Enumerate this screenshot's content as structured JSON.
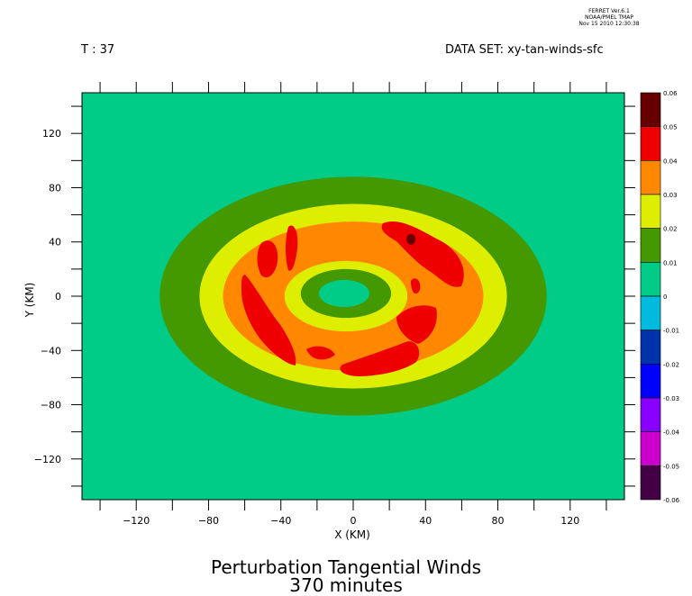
{
  "stamp": {
    "line1": "FERRET Ver.6.1",
    "line2": "NOAA/PMEL TMAP",
    "line3": "Nov 15 2010 12:30:38"
  },
  "header": {
    "time_label": "T : 37",
    "dataset_label": "DATA SET: xy-tan-winds-sfc"
  },
  "title": {
    "line1": "Perturbation Tangential Winds",
    "line2": "370 minutes"
  },
  "chart_data": {
    "type": "heatmap",
    "xlabel": "X (KM)",
    "ylabel": "Y (KM)",
    "xlim": [
      -150,
      150
    ],
    "ylim": [
      -150,
      150
    ],
    "xticks": [
      -120,
      -80,
      -40,
      0,
      40,
      80,
      120
    ],
    "yticks": [
      120,
      80,
      40,
      0,
      -40,
      -80,
      -120
    ],
    "grid": false,
    "colorbar": {
      "placement": "right",
      "levels": [
        "0.06",
        "0.05",
        "0.04",
        "0.03",
        "0.02",
        "0.01",
        "0",
        "-0.01",
        "-0.02",
        "-0.03",
        "-0.04",
        "-0.05",
        "-0.06"
      ],
      "colors": [
        "#660000",
        "#ee0000",
        "#ff8800",
        "#ddee00",
        "#449900",
        "#00cc88",
        "#00bbdd",
        "#0033aa",
        "#0000ff",
        "#8800ff",
        "#cc00cc",
        "#440044"
      ]
    },
    "regions": [
      {
        "level": "0.01 to 0.02",
        "color": "#449900",
        "shape": "outer ring",
        "center": [
          0,
          0
        ],
        "radii": [
          107,
          88
        ]
      },
      {
        "level": "0.02 to 0.03",
        "color": "#ddee00",
        "shape": "ring",
        "center": [
          0,
          0
        ],
        "radii": [
          85,
          68
        ]
      },
      {
        "level": "0.03 to 0.04",
        "color": "#ff8800",
        "shape": "ring",
        "center": [
          0,
          0
        ],
        "radii": [
          72,
          55
        ]
      },
      {
        "level": "0.02 to 0.03",
        "color": "#ddee00",
        "shape": "inner ring",
        "center": [
          -4,
          0
        ],
        "radii": [
          34,
          26
        ]
      },
      {
        "level": "0.01 to 0.02",
        "color": "#449900",
        "shape": "inner ring",
        "center": [
          -4,
          2
        ],
        "radii": [
          25,
          18
        ]
      },
      {
        "level": "0 to 0.01",
        "color": "#00cc88",
        "shape": "eye",
        "center": [
          -5,
          2
        ],
        "radii": [
          14,
          10
        ]
      },
      {
        "level": "0.04 to 0.05",
        "color": "#ee0000",
        "shape": "patches"
      },
      {
        "level": "0.05 to 0.06",
        "color": "#660000",
        "shape": "peak",
        "center": [
          32,
          42
        ]
      }
    ]
  }
}
